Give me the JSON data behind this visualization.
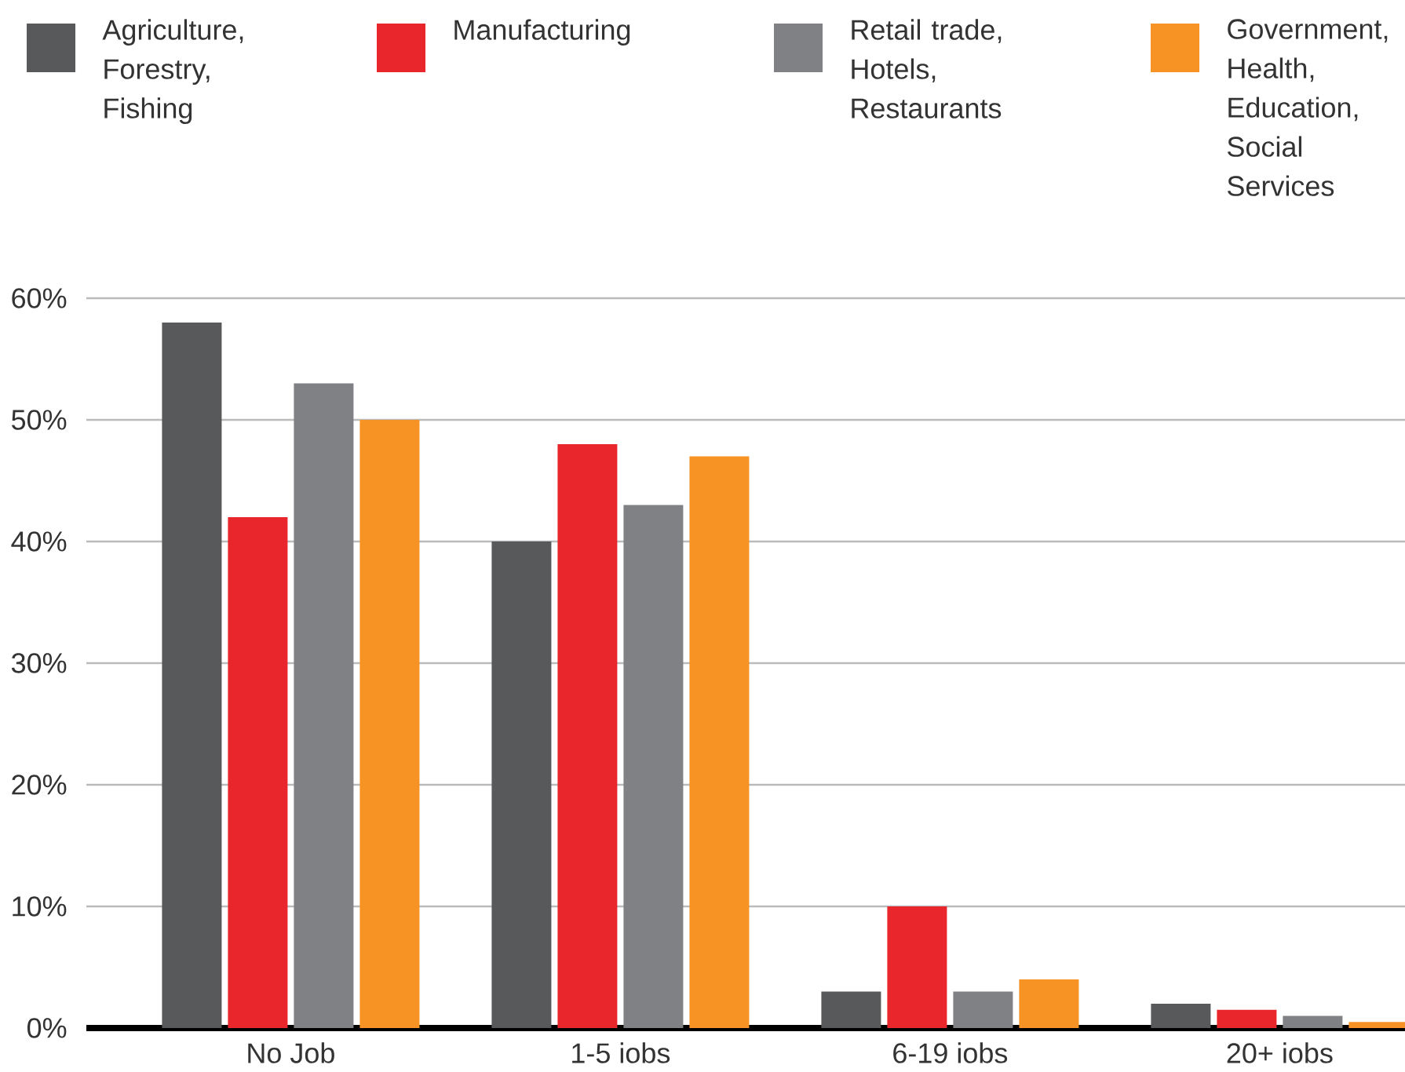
{
  "chart_data": {
    "type": "bar",
    "categories": [
      "No Job",
      "1-5 iobs",
      "6-19 iobs",
      "20+ iobs"
    ],
    "series": [
      {
        "name": "Agriculture, Forestry, Fishing",
        "color": "#58595b",
        "values": [
          58,
          40,
          3,
          2
        ]
      },
      {
        "name": "Manufacturing",
        "color": "#e8262b",
        "values": [
          42,
          48,
          10,
          1.5
        ]
      },
      {
        "name": "Retail trade, Hotels, Restaurants",
        "color": "#808184",
        "values": [
          53,
          43,
          3,
          1
        ]
      },
      {
        "name": "Government, Health, Education, Social Services",
        "color": "#f69324",
        "values": [
          50,
          47,
          4,
          0.5
        ]
      }
    ],
    "ylim": [
      0,
      60
    ],
    "yticks": [
      {
        "value": 0,
        "label": "0%"
      },
      {
        "value": 10,
        "label": "10%"
      },
      {
        "value": 20,
        "label": "20%"
      },
      {
        "value": 30,
        "label": "30%"
      },
      {
        "value": 40,
        "label": "40%"
      },
      {
        "value": 50,
        "label": "50%"
      },
      {
        "value": 60,
        "label": "60%"
      }
    ],
    "grid": "y",
    "legend": "top"
  }
}
